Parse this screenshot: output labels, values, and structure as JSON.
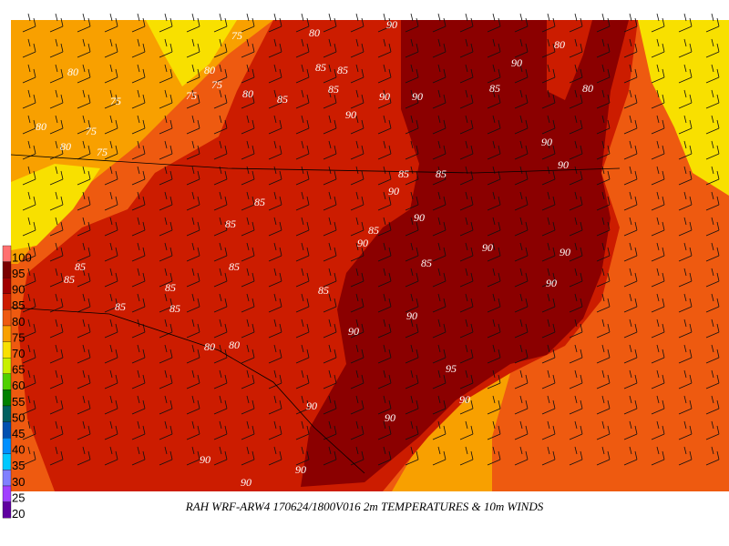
{
  "caption": "RAH WRF-ARW4 170624/1800V016  2m TEMPERATURES & 10m WINDS",
  "colorbar": {
    "labels": [
      "100",
      "95",
      "90",
      "85",
      "80",
      "75",
      "70",
      "65",
      "60",
      "55",
      "50",
      "45",
      "40",
      "35",
      "30",
      "25",
      "20"
    ],
    "colors": [
      "#ff7070",
      "#7a0000",
      "#a00000",
      "#cc1c00",
      "#ee5a10",
      "#f8a000",
      "#f8e000",
      "#c8f000",
      "#50d000",
      "#008000",
      "#006060",
      "#0050b0",
      "#0090ff",
      "#00c8ff",
      "#8080ff",
      "#a040ff",
      "#6000a0"
    ]
  },
  "contour_labels": [
    "90",
    "90",
    "90",
    "90",
    "85",
    "90",
    "90",
    "80",
    "80",
    "85",
    "85",
    "85",
    "85",
    "90",
    "80",
    "75",
    "75",
    "80",
    "75",
    "80",
    "75",
    "75",
    "80",
    "85",
    "85",
    "90",
    "85",
    "90",
    "90",
    "85",
    "90",
    "90",
    "90",
    "85",
    "85",
    "90",
    "85",
    "90",
    "95",
    "90",
    "90",
    "85",
    "85",
    "85",
    "85",
    "85",
    "85",
    "80",
    "80",
    "90",
    "90",
    "90",
    "90",
    "75",
    "80",
    "80"
  ]
}
